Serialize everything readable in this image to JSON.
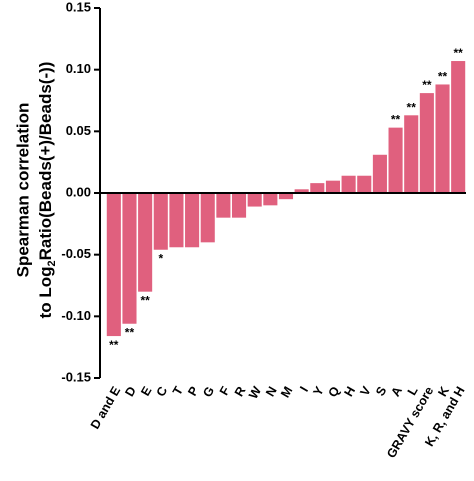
{
  "chart_data": {
    "type": "bar",
    "y_label": {
      "line1": "Spearman correlation",
      "line2": [
        "to Log",
        "2",
        "Ratio(Beads(+)/Beads(-))"
      ]
    },
    "categories": [
      "D and E",
      "D",
      "E",
      "C",
      "T",
      "P",
      "G",
      "F",
      "R",
      "W",
      "N",
      "M",
      "I",
      "Y",
      "Q",
      "H",
      "V",
      "S",
      "A",
      "L",
      "GRAVY score",
      "K",
      "K, R, and H"
    ],
    "values": [
      -0.116,
      -0.106,
      -0.08,
      -0.046,
      -0.044,
      -0.044,
      -0.04,
      -0.02,
      -0.02,
      -0.011,
      -0.01,
      -0.005,
      0.003,
      0.008,
      0.01,
      0.014,
      0.014,
      0.031,
      0.053,
      0.063,
      0.081,
      0.088,
      0.107
    ],
    "significance": [
      "**",
      "**",
      "**",
      "*",
      null,
      null,
      null,
      null,
      null,
      null,
      null,
      null,
      null,
      null,
      null,
      null,
      null,
      null,
      "**",
      "**",
      "**",
      "**",
      "**"
    ],
    "color": "#e0607e",
    "ylim": [
      -0.15,
      0.15
    ],
    "yticks": [
      -0.15,
      {
        "value": -0.1,
        "label": "-0.10"
      },
      -0.05,
      {
        "value": 0,
        "label": "0.00"
      },
      0.05,
      {
        "value": 0.1,
        "label": "0.10"
      },
      0.15
    ]
  }
}
